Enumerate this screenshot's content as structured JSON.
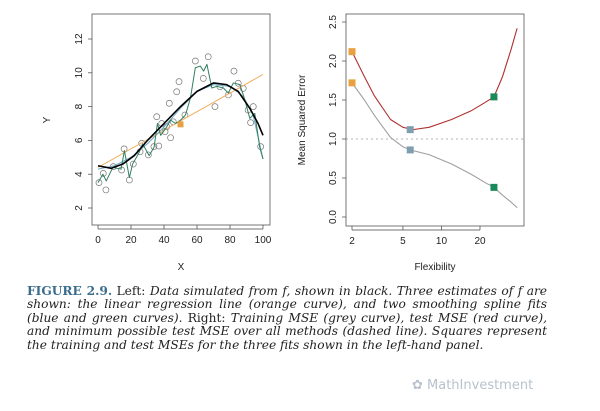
{
  "chart_data": [
    {
      "type": "scatter",
      "panel": "left",
      "xlabel": "X",
      "ylabel": "Y",
      "xlim": [
        0,
        100
      ],
      "ylim": [
        2,
        12
      ],
      "xticks": [
        "0",
        "20",
        "40",
        "60",
        "80",
        "100"
      ],
      "yticks": [
        "2",
        "4",
        "6",
        "8",
        "10",
        "12"
      ],
      "points": [
        [
          0.6,
          3.5
        ],
        [
          3.2,
          4.05
        ],
        [
          4.8,
          3.07
        ],
        [
          9.3,
          4.45
        ],
        [
          14.3,
          4.25
        ],
        [
          15.8,
          5.5
        ],
        [
          19,
          3.66
        ],
        [
          21.4,
          4.6
        ],
        [
          25.5,
          5.33
        ],
        [
          26.5,
          5.83
        ],
        [
          30.5,
          5.14
        ],
        [
          33.9,
          5.63
        ],
        [
          35.6,
          7.4
        ],
        [
          36.8,
          5.67
        ],
        [
          38.6,
          7.0
        ],
        [
          40.6,
          6.52
        ],
        [
          41.6,
          6.81
        ],
        [
          43.2,
          8.2
        ],
        [
          44,
          6.16
        ],
        [
          45.6,
          7.1
        ],
        [
          47.7,
          8.88
        ],
        [
          49.1,
          9.48
        ],
        [
          52.7,
          7.5
        ],
        [
          59,
          10.7
        ],
        [
          63.8,
          9.67
        ],
        [
          66.8,
          10.95
        ],
        [
          70.9,
          8.0
        ],
        [
          73.9,
          9.18
        ],
        [
          79,
          8.69
        ],
        [
          82.4,
          10.1
        ],
        [
          85,
          9.38
        ],
        [
          88,
          9.08
        ],
        [
          91,
          7.8
        ],
        [
          92.5,
          7.05
        ],
        [
          94.1,
          8.0
        ],
        [
          98.6,
          5.63
        ]
      ],
      "curves": [
        {
          "role": "true f",
          "color": "#000000",
          "points": [
            [
              0,
              4.5
            ],
            [
              8,
              4.35
            ],
            [
              15,
              4.6
            ],
            [
              22,
              5.1
            ],
            [
              30,
              6.0
            ],
            [
              40,
              7.0
            ],
            [
              50,
              8.0
            ],
            [
              60,
              8.9
            ],
            [
              70,
              9.4
            ],
            [
              78,
              9.3
            ],
            [
              85,
              8.9
            ],
            [
              92,
              7.9
            ],
            [
              97,
              7.0
            ],
            [
              100,
              6.3
            ]
          ]
        },
        {
          "role": "linear regression",
          "color": "#f0b060",
          "points": [
            [
              0,
              4.4
            ],
            [
              100,
              9.9
            ]
          ]
        },
        {
          "role": "smoothing spline (blue)",
          "color": "#6fa8c8",
          "points": [
            [
              0,
              4.3
            ],
            [
              10,
              4.5
            ],
            [
              20,
              5.0
            ],
            [
              30,
              5.8
            ],
            [
              40,
              6.8
            ],
            [
              50,
              7.9
            ],
            [
              60,
              8.9
            ],
            [
              70,
              9.3
            ],
            [
              80,
              9.2
            ],
            [
              88,
              8.6
            ],
            [
              94,
              7.5
            ],
            [
              100,
              4.9
            ]
          ]
        },
        {
          "role": "smoothing spline (green)",
          "color": "#2f7f5f",
          "points": [
            [
              0,
              3.5
            ],
            [
              3,
              4.0
            ],
            [
              5,
              3.6
            ],
            [
              9,
              4.4
            ],
            [
              14,
              4.3
            ],
            [
              16,
              5.4
            ],
            [
              19,
              3.8
            ],
            [
              21,
              4.6
            ],
            [
              25,
              5.3
            ],
            [
              27,
              5.8
            ],
            [
              31,
              5.1
            ],
            [
              34,
              5.6
            ],
            [
              36,
              7.0
            ],
            [
              38,
              6.3
            ],
            [
              41,
              6.7
            ],
            [
              44,
              7.2
            ],
            [
              47,
              7.0
            ],
            [
              50,
              7.2
            ],
            [
              53,
              7.5
            ],
            [
              56,
              8.5
            ],
            [
              59,
              10.3
            ],
            [
              62,
              10.4
            ],
            [
              64,
              10.1
            ],
            [
              66,
              10.5
            ],
            [
              69,
              9.1
            ],
            [
              72,
              9.2
            ],
            [
              76,
              9.1
            ],
            [
              79,
              8.8
            ],
            [
              82,
              9.4
            ],
            [
              86,
              9.3
            ],
            [
              89,
              8.4
            ],
            [
              92,
              7.3
            ],
            [
              95,
              7.6
            ],
            [
              98,
              5.6
            ],
            [
              100,
              4.9
            ]
          ]
        }
      ],
      "squares": [
        {
          "x": 50,
          "y": 6.95,
          "color": "#e8a040"
        }
      ]
    },
    {
      "type": "line",
      "panel": "right",
      "xlabel": "Flexibility",
      "ylabel": "Mean Squared Error",
      "xscale": "log",
      "xlim": [
        2,
        39
      ],
      "ylim": [
        0,
        2.5
      ],
      "xticks": [
        "2",
        "5",
        "10",
        "20"
      ],
      "yticks": [
        "0.0",
        "0.5",
        "1.0",
        "1.5",
        "2.0",
        "2.5"
      ],
      "series": [
        {
          "role": "test MSE",
          "color": "#b03030",
          "points": [
            [
              2,
              2.12
            ],
            [
              2.5,
              1.8
            ],
            [
              3,
              1.55
            ],
            [
              4,
              1.25
            ],
            [
              5,
              1.15
            ],
            [
              6,
              1.12
            ],
            [
              8,
              1.15
            ],
            [
              12,
              1.25
            ],
            [
              17,
              1.36
            ],
            [
              22,
              1.47
            ],
            [
              25.7,
              1.54
            ],
            [
              30,
              1.8
            ],
            [
              35,
              2.15
            ],
            [
              39,
              2.42
            ]
          ]
        },
        {
          "role": "training MSE",
          "color": "#a0a0a0",
          "points": [
            [
              2,
              1.72
            ],
            [
              2.5,
              1.5
            ],
            [
              3,
              1.3
            ],
            [
              4,
              1.02
            ],
            [
              5,
              0.9
            ],
            [
              5.7,
              0.86
            ],
            [
              8,
              0.8
            ],
            [
              12,
              0.68
            ],
            [
              17,
              0.55
            ],
            [
              22,
              0.44
            ],
            [
              25.7,
              0.38
            ],
            [
              30,
              0.28
            ],
            [
              35,
              0.19
            ],
            [
              39,
              0.12
            ]
          ]
        }
      ],
      "hline": {
        "y": 1.0,
        "style": "dashed",
        "color": "#999999"
      },
      "squares": [
        {
          "x": 2,
          "y": 2.12,
          "color": "#e8a040"
        },
        {
          "x": 2,
          "y": 1.72,
          "color": "#e8a040"
        },
        {
          "x": 5.7,
          "y": 1.12,
          "color": "#7f9fb0"
        },
        {
          "x": 5.7,
          "y": 0.86,
          "color": "#7f9fb0"
        },
        {
          "x": 25.7,
          "y": 1.54,
          "color": "#1a8a5a"
        },
        {
          "x": 25.7,
          "y": 0.38,
          "color": "#1a8a5a"
        }
      ]
    }
  ],
  "caption": {
    "figure_label": "FIGURE 2.9.",
    "left_label": "Left:",
    "left_text": "Data simulated from f, shown in black. Three estimates of f are shown: the linear regression line (orange curve), and two smoothing spline fits (blue and green curves).",
    "right_label": "Right:",
    "right_text": "Training MSE (grey curve), test MSE (red curve), and minimum possible test MSE over all methods (dashed line). Squares represent the training and test MSEs for the three fits shown in the left-hand panel."
  },
  "watermark": "MathInvestment"
}
